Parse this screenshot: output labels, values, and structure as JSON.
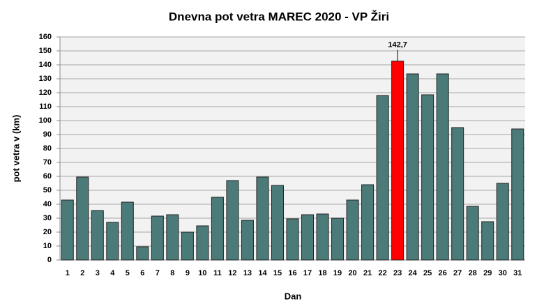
{
  "chart_data": {
    "type": "bar",
    "title": "Dnevna pot vetra MAREC 2020 - VP Žiri",
    "x_label": "Dan",
    "y_label": "pot vetra  v (km)",
    "categories": [
      "1",
      "2",
      "3",
      "4",
      "5",
      "6",
      "7",
      "8",
      "9",
      "10",
      "11",
      "12",
      "13",
      "14",
      "15",
      "16",
      "17",
      "18",
      "19",
      "20",
      "21",
      "22",
      "23",
      "24",
      "25",
      "26",
      "27",
      "28",
      "29",
      "30",
      "31"
    ],
    "values": [
      43,
      59.5,
      35.5,
      27,
      41.5,
      9.5,
      31.5,
      32.5,
      20,
      24.5,
      45,
      57,
      28.5,
      59.5,
      53.5,
      29.5,
      32.5,
      33,
      30,
      43,
      54,
      118,
      142.7,
      133.5,
      118.5,
      133.5,
      95,
      38.5,
      27.5,
      55,
      94
    ],
    "value_labels": [
      null,
      null,
      null,
      null,
      null,
      null,
      null,
      null,
      null,
      null,
      null,
      null,
      null,
      null,
      null,
      null,
      null,
      null,
      null,
      null,
      null,
      null,
      "142,7",
      null,
      null,
      null,
      null,
      null,
      null,
      null,
      null
    ],
    "colors": [
      "#4a7b79",
      "#4a7b79",
      "#4a7b79",
      "#4a7b79",
      "#4a7b79",
      "#4a7b79",
      "#4a7b79",
      "#4a7b79",
      "#4a7b79",
      "#4a7b79",
      "#4a7b79",
      "#4a7b79",
      "#4a7b79",
      "#4a7b79",
      "#4a7b79",
      "#4a7b79",
      "#4a7b79",
      "#4a7b79",
      "#4a7b79",
      "#4a7b79",
      "#4a7b79",
      "#4a7b79",
      "#ff0000",
      "#4a7b79",
      "#4a7b79",
      "#4a7b79",
      "#4a7b79",
      "#4a7b79",
      "#4a7b79",
      "#4a7b79",
      "#4a7b79"
    ],
    "ylim": [
      0,
      160
    ],
    "yticks": [
      0,
      10,
      20,
      30,
      40,
      50,
      60,
      70,
      80,
      90,
      100,
      110,
      120,
      130,
      140,
      150,
      160
    ],
    "grid": true
  }
}
